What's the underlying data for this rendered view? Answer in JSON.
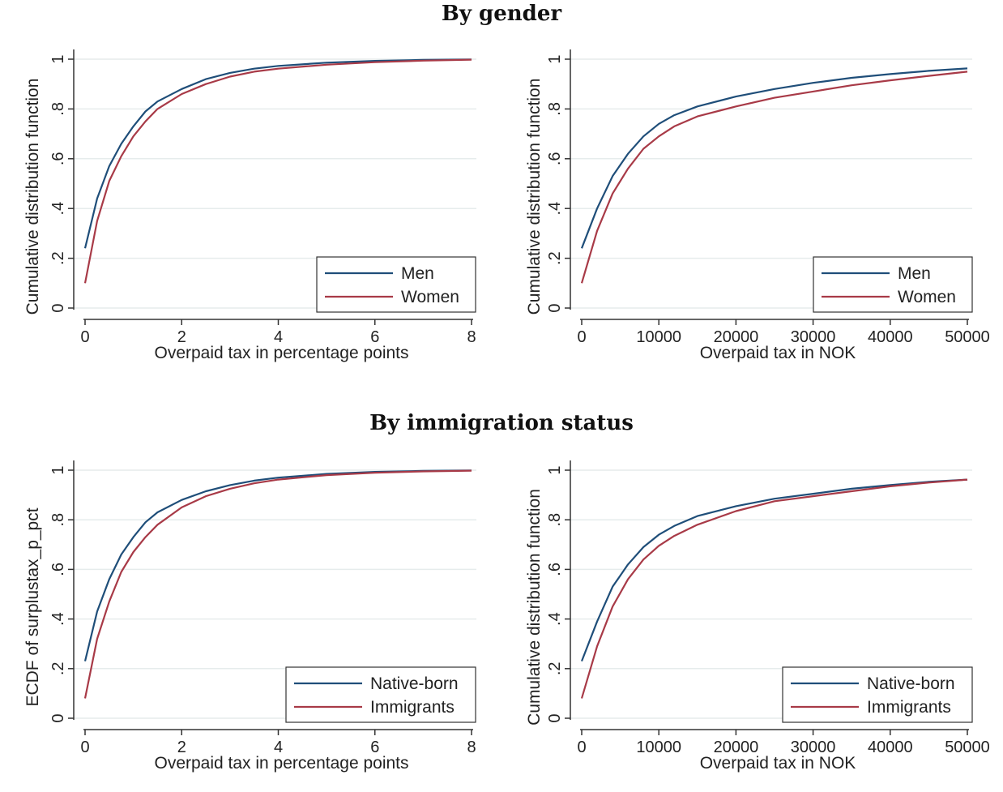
{
  "titles": {
    "top": "By gender",
    "bottom": "By immigration status"
  },
  "colors": {
    "series1": "#1f4e79",
    "series2": "#a83a47",
    "grid": "#e6ecec",
    "axis": "#333333"
  },
  "chart_data": [
    {
      "type": "line",
      "panel": "top-left",
      "xlabel": "Overpaid tax in percentage points",
      "ylabel": "Cumulative distribution function",
      "xlim": [
        0,
        8
      ],
      "ylim": [
        0,
        1
      ],
      "xticks": [
        "0",
        "2",
        "4",
        "6",
        "8"
      ],
      "xtick_values": [
        0,
        2,
        4,
        6,
        8
      ],
      "yticks": [
        "0",
        ".2",
        ".4",
        ".6",
        ".8",
        "1"
      ],
      "ytick_values": [
        0,
        0.2,
        0.4,
        0.6,
        0.8,
        1
      ],
      "grid": true,
      "legend_position": "bottom-right",
      "series": [
        {
          "name": "Men",
          "x": [
            0,
            0.25,
            0.5,
            0.75,
            1,
            1.25,
            1.5,
            2,
            2.5,
            3,
            3.5,
            4,
            5,
            6,
            7,
            8
          ],
          "y": [
            0.24,
            0.44,
            0.57,
            0.66,
            0.73,
            0.79,
            0.83,
            0.88,
            0.92,
            0.945,
            0.962,
            0.973,
            0.986,
            0.993,
            0.997,
            0.999
          ]
        },
        {
          "name": "Women",
          "x": [
            0,
            0.25,
            0.5,
            0.75,
            1,
            1.25,
            1.5,
            2,
            2.5,
            3,
            3.5,
            4,
            5,
            6,
            7,
            8
          ],
          "y": [
            0.1,
            0.35,
            0.51,
            0.61,
            0.69,
            0.75,
            0.8,
            0.86,
            0.9,
            0.93,
            0.95,
            0.962,
            0.978,
            0.988,
            0.994,
            0.998
          ]
        }
      ]
    },
    {
      "type": "line",
      "panel": "top-right",
      "xlabel": "Overpaid tax in NOK",
      "ylabel": "Cumulative distribution function",
      "xlim": [
        0,
        50000
      ],
      "ylim": [
        0,
        1
      ],
      "xticks": [
        "0",
        "10000",
        "20000",
        "30000",
        "40000",
        "50000"
      ],
      "xtick_values": [
        0,
        10000,
        20000,
        30000,
        40000,
        50000
      ],
      "yticks": [
        "0",
        ".2",
        ".4",
        ".6",
        ".8",
        "1"
      ],
      "ytick_values": [
        0,
        0.2,
        0.4,
        0.6,
        0.8,
        1
      ],
      "grid": true,
      "legend_position": "bottom-right",
      "series": [
        {
          "name": "Men",
          "x": [
            0,
            2000,
            4000,
            6000,
            8000,
            10000,
            12000,
            15000,
            20000,
            25000,
            30000,
            35000,
            40000,
            45000,
            50000
          ],
          "y": [
            0.24,
            0.4,
            0.53,
            0.62,
            0.69,
            0.74,
            0.775,
            0.81,
            0.85,
            0.88,
            0.905,
            0.925,
            0.94,
            0.953,
            0.963
          ]
        },
        {
          "name": "Women",
          "x": [
            0,
            2000,
            4000,
            6000,
            8000,
            10000,
            12000,
            15000,
            20000,
            25000,
            30000,
            35000,
            40000,
            45000,
            50000
          ],
          "y": [
            0.1,
            0.31,
            0.46,
            0.56,
            0.64,
            0.69,
            0.73,
            0.77,
            0.81,
            0.845,
            0.87,
            0.895,
            0.915,
            0.933,
            0.95
          ]
        }
      ]
    },
    {
      "type": "line",
      "panel": "bottom-left",
      "xlabel": "Overpaid tax in percentage points",
      "ylabel": "ECDF of surplustax_p_pct",
      "xlim": [
        0,
        8
      ],
      "ylim": [
        0,
        1
      ],
      "xticks": [
        "0",
        "2",
        "4",
        "6",
        "8"
      ],
      "xtick_values": [
        0,
        2,
        4,
        6,
        8
      ],
      "yticks": [
        "0",
        ".2",
        ".4",
        ".6",
        ".8",
        "1"
      ],
      "ytick_values": [
        0,
        0.2,
        0.4,
        0.6,
        0.8,
        1
      ],
      "grid": true,
      "legend_position": "bottom-right",
      "series": [
        {
          "name": "Native-born",
          "x": [
            0,
            0.25,
            0.5,
            0.75,
            1,
            1.25,
            1.5,
            2,
            2.5,
            3,
            3.5,
            4,
            5,
            6,
            7,
            8
          ],
          "y": [
            0.23,
            0.43,
            0.56,
            0.66,
            0.73,
            0.79,
            0.83,
            0.88,
            0.915,
            0.94,
            0.958,
            0.97,
            0.985,
            0.993,
            0.997,
            0.999
          ]
        },
        {
          "name": "Immigrants",
          "x": [
            0,
            0.25,
            0.5,
            0.75,
            1,
            1.25,
            1.5,
            2,
            2.5,
            3,
            3.5,
            4,
            5,
            6,
            7,
            8
          ],
          "y": [
            0.08,
            0.32,
            0.47,
            0.59,
            0.67,
            0.73,
            0.78,
            0.85,
            0.895,
            0.925,
            0.947,
            0.962,
            0.98,
            0.99,
            0.995,
            0.998
          ]
        }
      ]
    },
    {
      "type": "line",
      "panel": "bottom-right",
      "xlabel": "Overpaid tax in NOK",
      "ylabel": "Cumulative distribution function",
      "xlim": [
        0,
        50000
      ],
      "ylim": [
        0,
        1
      ],
      "xticks": [
        "0",
        "10000",
        "20000",
        "30000",
        "40000",
        "50000"
      ],
      "xtick_values": [
        0,
        10000,
        20000,
        30000,
        40000,
        50000
      ],
      "yticks": [
        "0",
        ".2",
        ".4",
        ".6",
        ".8",
        "1"
      ],
      "ytick_values": [
        0,
        0.2,
        0.4,
        0.6,
        0.8,
        1
      ],
      "grid": true,
      "legend_position": "bottom-right",
      "series": [
        {
          "name": "Native-born",
          "x": [
            0,
            2000,
            4000,
            6000,
            8000,
            10000,
            12000,
            15000,
            20000,
            25000,
            30000,
            35000,
            40000,
            45000,
            50000
          ],
          "y": [
            0.23,
            0.39,
            0.53,
            0.62,
            0.69,
            0.74,
            0.775,
            0.815,
            0.855,
            0.885,
            0.905,
            0.925,
            0.94,
            0.953,
            0.962
          ]
        },
        {
          "name": "Immigrants",
          "x": [
            0,
            2000,
            4000,
            6000,
            8000,
            10000,
            12000,
            15000,
            20000,
            25000,
            30000,
            35000,
            40000,
            45000,
            50000
          ],
          "y": [
            0.08,
            0.29,
            0.45,
            0.56,
            0.64,
            0.695,
            0.735,
            0.78,
            0.835,
            0.875,
            0.895,
            0.915,
            0.935,
            0.95,
            0.962
          ]
        }
      ]
    }
  ]
}
